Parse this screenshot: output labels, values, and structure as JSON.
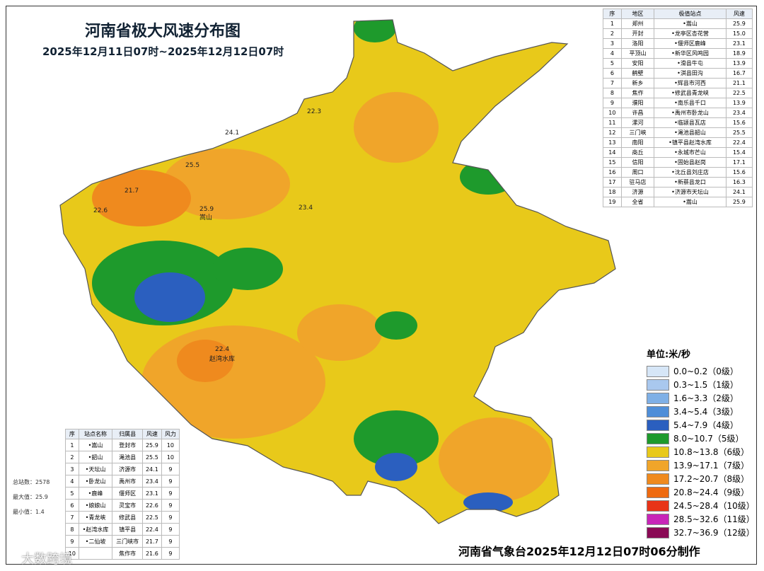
{
  "header": {
    "title": "河南省极大风速分布图",
    "subtitle": "2025年12月11日07时~2025年12月12日07时"
  },
  "table_top": {
    "columns": [
      "序",
      "地区",
      "极值站点",
      "风速"
    ],
    "rows": [
      [
        "1",
        "郑州",
        "•嵩山",
        "25.9"
      ],
      [
        "2",
        "开封",
        "•龙亭区杏花营",
        "15.0"
      ],
      [
        "3",
        "洛阳",
        "•偃师区鹿峰",
        "23.1"
      ],
      [
        "4",
        "平顶山",
        "•新华区风鸣园",
        "18.9"
      ],
      [
        "5",
        "安阳",
        "•滑县牛屯",
        "13.9"
      ],
      [
        "6",
        "鹤壁",
        "•淇县田沟",
        "16.7"
      ],
      [
        "7",
        "新乡",
        "•辉县市河西",
        "21.1"
      ],
      [
        "8",
        "焦作",
        "•修武县青龙峡",
        "22.5"
      ],
      [
        "9",
        "濮阳",
        "•南乐县千口",
        "13.9"
      ],
      [
        "10",
        "许昌",
        "•禹州市卧龙山",
        "23.4"
      ],
      [
        "11",
        "漯河",
        "•临颍县瓦店",
        "15.6"
      ],
      [
        "12",
        "三门峡",
        "•渑池县韶山",
        "25.5"
      ],
      [
        "13",
        "南阳",
        "•镇平县赵湾水库",
        "22.4"
      ],
      [
        "14",
        "商丘",
        "•永城市芒山",
        "15.4"
      ],
      [
        "15",
        "信阳",
        "•固始县赵岗",
        "17.1"
      ],
      [
        "16",
        "周口",
        "•沈丘县刘庄店",
        "15.6"
      ],
      [
        "17",
        "驻马店",
        "•新蔡县龙口",
        "16.3"
      ],
      [
        "18",
        "济源",
        "•济源市天坛山",
        "24.1"
      ],
      [
        "19",
        "全省",
        "•嵩山",
        "25.9"
      ]
    ]
  },
  "table_bottom": {
    "columns": [
      "序",
      "站点名称",
      "归属县",
      "风速",
      "风力"
    ],
    "rows": [
      [
        "1",
        "•嵩山",
        "登封市",
        "25.9",
        "10"
      ],
      [
        "2",
        "•韶山",
        "渑池县",
        "25.5",
        "10"
      ],
      [
        "3",
        "•天坛山",
        "济源市",
        "24.1",
        "9"
      ],
      [
        "4",
        "•卧龙山",
        "禹州市",
        "23.4",
        "9"
      ],
      [
        "5",
        "•鹿峰",
        "偃师区",
        "23.1",
        "9"
      ],
      [
        "6",
        "•娘娘山",
        "灵宝市",
        "22.6",
        "9"
      ],
      [
        "7",
        "•青龙峡",
        "修武县",
        "22.5",
        "9"
      ],
      [
        "8",
        "•赵湾水库",
        "镇平县",
        "22.4",
        "9"
      ],
      [
        "9",
        "•二仙坡",
        "三门峡市",
        "21.7",
        "9"
      ],
      [
        "10",
        null,
        "焦作市",
        "21.6",
        "9"
      ]
    ]
  },
  "stats": [
    "总站数：2578",
    "最大值：25.9",
    "最小值：1.4"
  ],
  "legend": {
    "title": "单位:米/秒",
    "items": [
      {
        "label": "0.0~0.2（0级）",
        "color": "#d6e6f7"
      },
      {
        "label": "0.3~1.5（1级）",
        "color": "#a9c8ee"
      },
      {
        "label": "1.6~3.3（2级）",
        "color": "#7fb0e6"
      },
      {
        "label": "3.4~5.4（3级）",
        "color": "#4f8ed8"
      },
      {
        "label": "5.4~7.9（4级）",
        "color": "#2b5fbf"
      },
      {
        "label": "8.0~10.7（5级）",
        "color": "#1e9a2c"
      },
      {
        "label": "10.8~13.8（6级）",
        "color": "#e8c91a"
      },
      {
        "label": "13.9~17.1（7级）",
        "color": "#f0a52a"
      },
      {
        "label": "17.2~20.7（8级）",
        "color": "#ef8a1e"
      },
      {
        "label": "20.8~24.4（9级）",
        "color": "#ee6a10"
      },
      {
        "label": "24.5~28.4（10级）",
        "color": "#e83418"
      },
      {
        "label": "28.5~32.6（11级）",
        "color": "#c825b8"
      },
      {
        "label": "32.7~36.9（12级）",
        "color": "#8a0a55"
      }
    ]
  },
  "map_labels": [
    "25.9",
    "25.5",
    "22.6",
    "24.1",
    "22.3",
    "22.4",
    "21.7",
    "23.4",
    "赵湾水库",
    "嵩山"
  ],
  "footer": "河南省气象台2025年12月12日07时06分制作",
  "watermark": "大数跨境"
}
